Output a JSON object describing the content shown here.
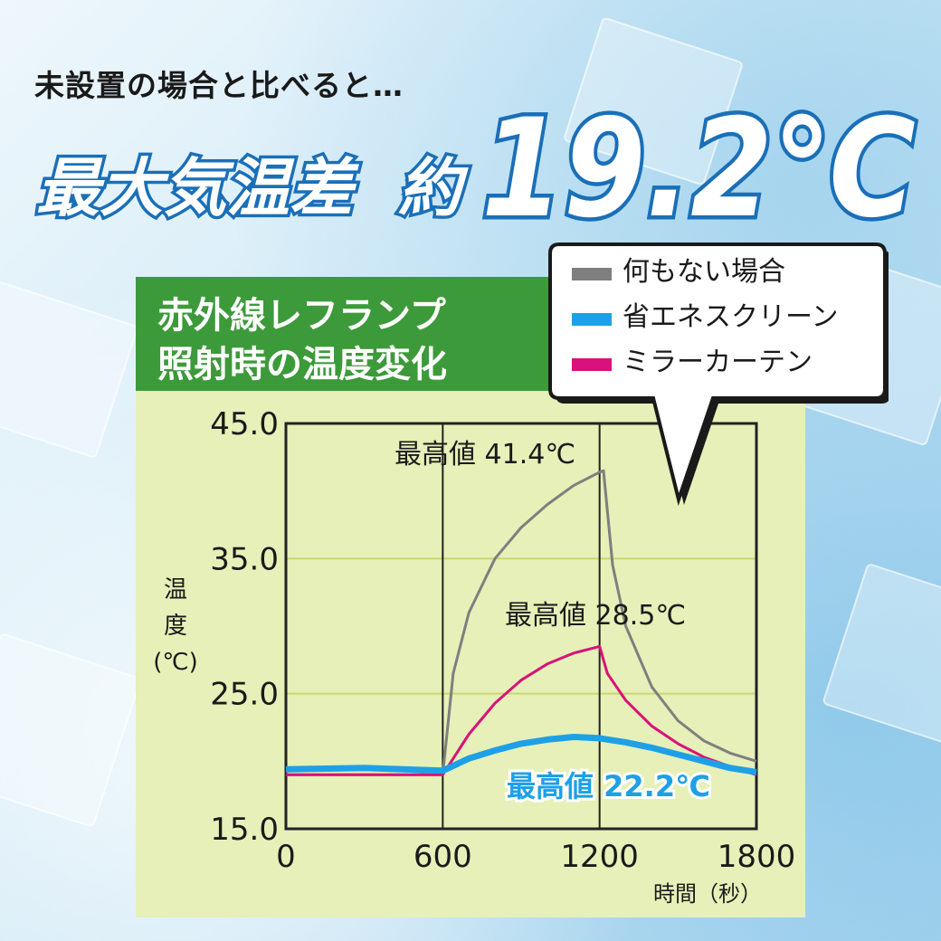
{
  "header": {
    "subtitle": "未設置の場合と比べると…",
    "headline_text": "最大気温差",
    "headline_prefix": "約",
    "headline_value": "19.2℃"
  },
  "colors": {
    "headline_fill": "#ffffff",
    "headline_stroke": "#1a6fb8",
    "panel_bg": "#e6f0b8",
    "title_bg": "#3d9a3a",
    "gridline": "#c8d870"
  },
  "chart_data": {
    "type": "line",
    "title_lines": [
      "赤外線レフランプ",
      "照射時の温度変化"
    ],
    "xlabel": "時間（秒）",
    "ylabel_chars": [
      "温",
      "度",
      "(℃)"
    ],
    "x_ticks": [
      0,
      600,
      1200,
      1800
    ],
    "x_tick_labels": [
      "0",
      "600",
      "1200",
      "1800"
    ],
    "y_ticks": [
      15,
      25,
      35,
      45
    ],
    "y_tick_labels": [
      "15.0",
      "25.0",
      "35.0",
      "45.0"
    ],
    "xlim": [
      0,
      1800
    ],
    "ylim": [
      15,
      45
    ],
    "grid": true,
    "legend_placement": "top-right",
    "series": [
      {
        "name": "何もない場合",
        "color": "#7f7f7f",
        "x": [
          0,
          600,
          640,
          700,
          800,
          900,
          1000,
          1100,
          1200,
          1215,
          1250,
          1300,
          1400,
          1500,
          1600,
          1700,
          1800
        ],
        "y": [
          19.0,
          19.0,
          26.5,
          31.0,
          35.0,
          37.3,
          39.0,
          40.4,
          41.4,
          41.5,
          34.5,
          30.0,
          25.5,
          23.0,
          21.5,
          20.6,
          20.0
        ],
        "peak_label": "最高値 41.4℃"
      },
      {
        "name": "省エネスクリーン",
        "color": "#1ea0e6",
        "x": [
          0,
          300,
          600,
          700,
          800,
          900,
          1000,
          1100,
          1200,
          1300,
          1400,
          1500,
          1600,
          1700,
          1800
        ],
        "y": [
          19.4,
          19.5,
          19.3,
          20.2,
          20.8,
          21.3,
          21.6,
          21.8,
          21.7,
          21.4,
          21.0,
          20.5,
          20.0,
          19.5,
          19.2
        ],
        "peak_label": "最高値 22.2℃"
      },
      {
        "name": "ミラーカーテン",
        "color": "#d8127a",
        "x": [
          0,
          300,
          600,
          700,
          800,
          900,
          1000,
          1100,
          1200,
          1230,
          1300,
          1400,
          1500,
          1600,
          1700,
          1800
        ],
        "y": [
          19.0,
          19.0,
          19.0,
          22.0,
          24.3,
          26.0,
          27.2,
          28.0,
          28.5,
          26.5,
          24.5,
          22.6,
          21.3,
          20.3,
          19.6,
          19.0
        ],
        "peak_label": "最高値 28.5℃"
      }
    ]
  }
}
